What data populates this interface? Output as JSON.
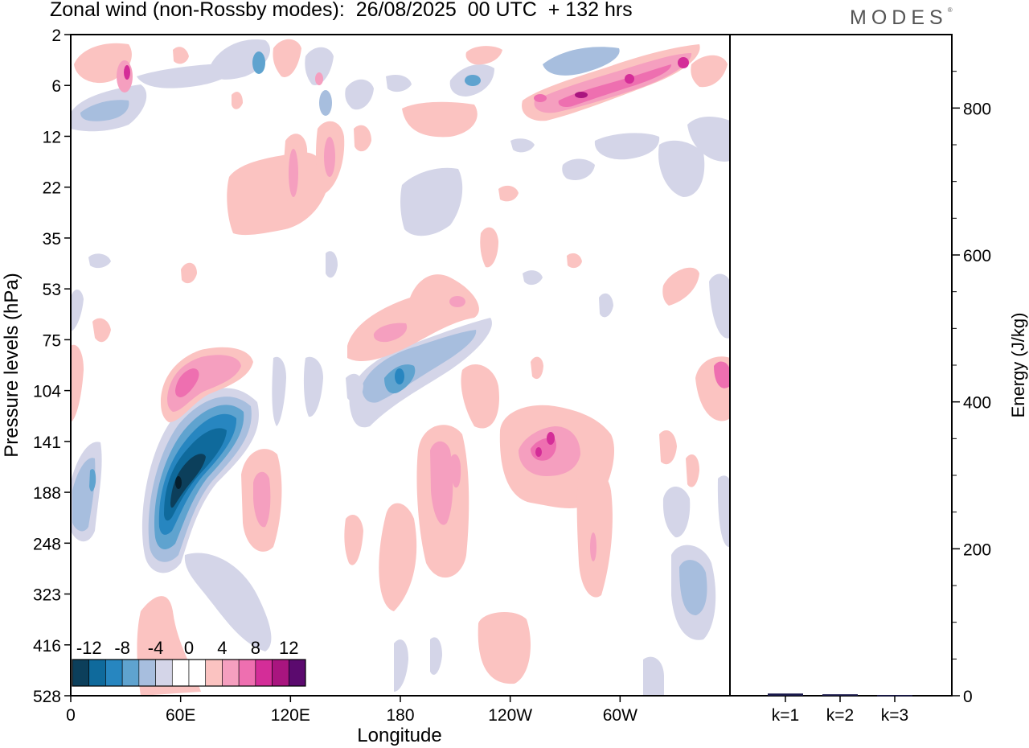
{
  "header": {
    "title": "Zonal wind (non-Rossby modes):  26/08/2025  00 UTC  + 132 hrs",
    "logo": "MODES",
    "logo_mark": "®"
  },
  "chart_data": [
    {
      "type": "heatmap",
      "title": "Zonal wind (non-Rossby modes):  26/08/2025  00 UTC  + 132 hrs",
      "xlabel": "Longitude",
      "ylabel": "Pressure levels (hPa)",
      "x_tick_labels": [
        "0",
        "60E",
        "120E",
        "180",
        "120W",
        "60W"
      ],
      "x_tick_degrees": [
        0,
        60,
        120,
        180,
        240,
        300
      ],
      "x_range_degrees": [
        0,
        360
      ],
      "y_tick_labels": [
        "2",
        "6",
        "12",
        "22",
        "35",
        "53",
        "75",
        "104",
        "141",
        "188",
        "248",
        "323",
        "416",
        "528"
      ],
      "y_ticks_hPa": [
        2,
        6,
        12,
        22,
        35,
        53,
        75,
        104,
        141,
        188,
        248,
        323,
        416,
        528
      ],
      "colorbar": {
        "labels": [
          "-12",
          "-8",
          "-4",
          "0",
          "4",
          "8",
          "12"
        ],
        "colors": [
          "#0c3f5b",
          "#0f6a9c",
          "#2786c0",
          "#5fa3cf",
          "#a7bede",
          "#d4d5e8",
          "#ffffff",
          "#ffffff",
          "#fbc3c1",
          "#f59fbf",
          "#ee6fb0",
          "#d42d98",
          "#a9157f",
          "#5b0a6e"
        ]
      },
      "features": [
        {
          "name": "negative jet core",
          "lon": 60,
          "level_hPa": 188,
          "value": -14
        },
        {
          "name": "positive maximum",
          "lon": 62,
          "level_hPa": 104,
          "value": 9
        },
        {
          "name": "negative maximum",
          "lon": 178,
          "level_hPa": 104,
          "value": -7
        },
        {
          "name": "positive maximum",
          "lon": 258,
          "level_hPa": 141,
          "value": 9
        },
        {
          "name": "positive upper band",
          "lon": 290,
          "level_hPa": 6,
          "value": 10
        },
        {
          "name": "negative low feature",
          "lon": 342,
          "level_hPa": 323,
          "value": -6
        }
      ]
    },
    {
      "type": "bar",
      "ylabel": "Energy (J/kg)",
      "categories": [
        "k=1",
        "k=2",
        "k=3"
      ],
      "values": [
        3,
        2,
        1
      ],
      "ylim": [
        0,
        900
      ],
      "y_tick_labels": [
        "0",
        "200",
        "400",
        "600",
        "800"
      ],
      "y_ticks": [
        0,
        200,
        400,
        600,
        800
      ]
    }
  ]
}
